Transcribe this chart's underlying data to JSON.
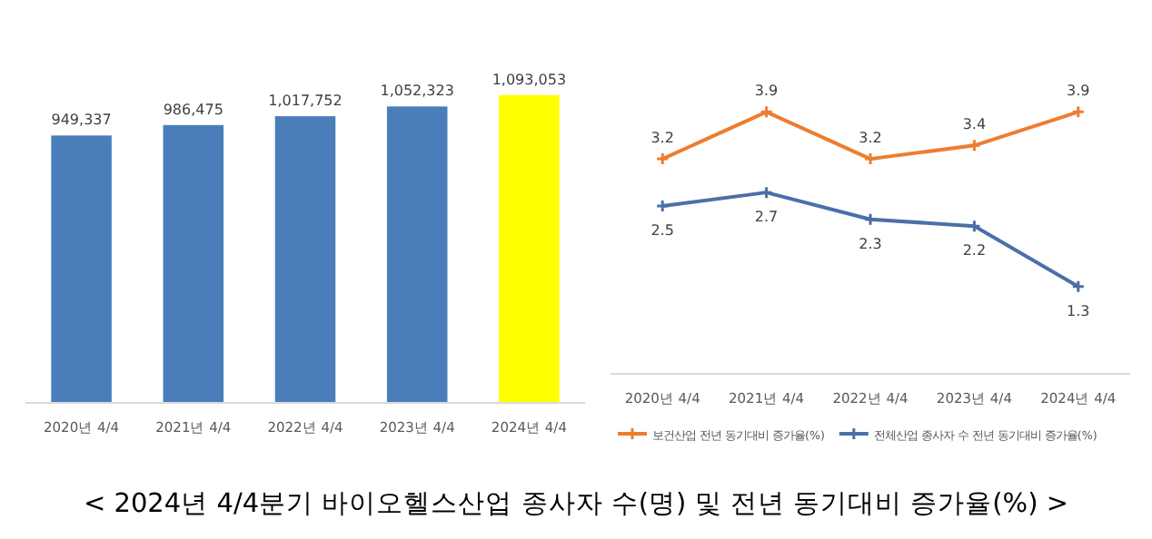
{
  "chart_data": [
    {
      "type": "bar",
      "categories": [
        "2020년 4/4",
        "2021년 4/4",
        "2022년 4/4",
        "2023년 4/4",
        "2024년 4/4"
      ],
      "values": [
        949337,
        986475,
        1017752,
        1052323,
        1093053
      ],
      "colors": [
        "#4a7ebb",
        "#4a7ebb",
        "#4a7ebb",
        "#4a7ebb",
        "#ffff00"
      ],
      "value_labels": [
        "949,337",
        "986,475",
        "1,017,752",
        "1,052,323",
        "1,093,053"
      ],
      "tick_labels": "x",
      "annotations": [
        "< 2024년 4/4분기 바이오헬스산업 종사자 수(명) 및 전년 동기대비 증가율(%) >"
      ]
    },
    {
      "type": "line",
      "categories": [
        "2020년 4/4",
        "2021년 4/4",
        "2022년 4/4",
        "2023년 4/4",
        "2024년 4/4"
      ],
      "data_labels": true,
      "tick_labels": "x",
      "legend": "bottom",
      "marker": "cross",
      "series": [
        {
          "name": "보건산업 전년 동기대비 증가율(%)",
          "color": "#ed7d31",
          "values": [
            3.2,
            3.9,
            3.2,
            3.4,
            3.9
          ]
        },
        {
          "name": "전체산업 종사자 수 전년 동기대비 증가율(%)",
          "color": "#4a70a8",
          "values": [
            2.5,
            2.7,
            2.3,
            2.2,
            1.3
          ]
        }
      ]
    }
  ]
}
